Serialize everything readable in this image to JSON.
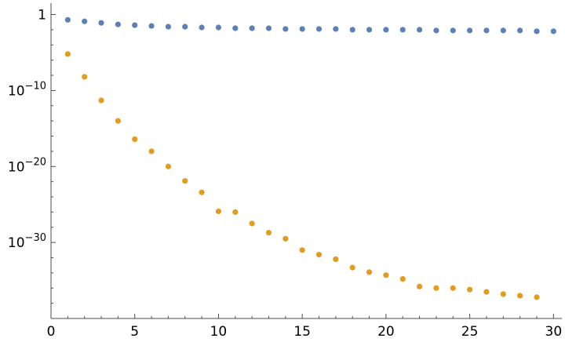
{
  "chart_data": {
    "type": "scatter",
    "xlim": [
      0,
      30.5
    ],
    "ylim_log10": [
      -40,
      1.5
    ],
    "yscale": "log",
    "grid": false,
    "legend": "none",
    "x_ticks": [
      {
        "value": 0,
        "label": "0"
      },
      {
        "value": 5,
        "label": "5"
      },
      {
        "value": 10,
        "label": "10"
      },
      {
        "value": 15,
        "label": "15"
      },
      {
        "value": 20,
        "label": "20"
      },
      {
        "value": 25,
        "label": "25"
      },
      {
        "value": 30,
        "label": "30"
      }
    ],
    "y_ticks": [
      {
        "exp": 0,
        "label": "1"
      },
      {
        "exp": -10,
        "base": "10",
        "power": "−10"
      },
      {
        "exp": -20,
        "base": "10",
        "power": "−20"
      },
      {
        "exp": -30,
        "base": "10",
        "power": "−30"
      }
    ],
    "series": [
      {
        "color": "#5e81b5",
        "x": [
          1,
          2,
          3,
          4,
          5,
          6,
          7,
          8,
          9,
          10,
          11,
          12,
          13,
          14,
          15,
          16,
          17,
          18,
          19,
          20,
          21,
          22,
          23,
          24,
          25,
          26,
          27,
          28,
          29,
          30
        ],
        "log10_y": [
          -0.7,
          -0.9,
          -1.1,
          -1.3,
          -1.4,
          -1.5,
          -1.6,
          -1.6,
          -1.7,
          -1.7,
          -1.8,
          -1.8,
          -1.8,
          -1.9,
          -1.9,
          -1.9,
          -1.9,
          -2.0,
          -2.0,
          -2.0,
          -2.0,
          -2.0,
          -2.1,
          -2.1,
          -2.1,
          -2.1,
          -2.1,
          -2.1,
          -2.2,
          -2.2
        ]
      },
      {
        "color": "#e19c24",
        "x": [
          1,
          2,
          3,
          4,
          5,
          6,
          7,
          8,
          9,
          10,
          11,
          12,
          13,
          14,
          15,
          16,
          17,
          18,
          19,
          20,
          21,
          22,
          23,
          24,
          25,
          26,
          27,
          28,
          29
        ],
        "log10_y": [
          -5.2,
          -8.2,
          -11.3,
          -14.0,
          -16.4,
          -18.0,
          -20.0,
          -21.9,
          -23.4,
          -25.9,
          -26.0,
          -27.5,
          -28.7,
          -29.5,
          -31.0,
          -31.6,
          -32.2,
          -33.3,
          -33.9,
          -34.3,
          -34.8,
          -35.8,
          -36.0,
          -36.0,
          -36.2,
          -36.5,
          -36.8,
          -37.0,
          -37.2
        ]
      }
    ]
  }
}
